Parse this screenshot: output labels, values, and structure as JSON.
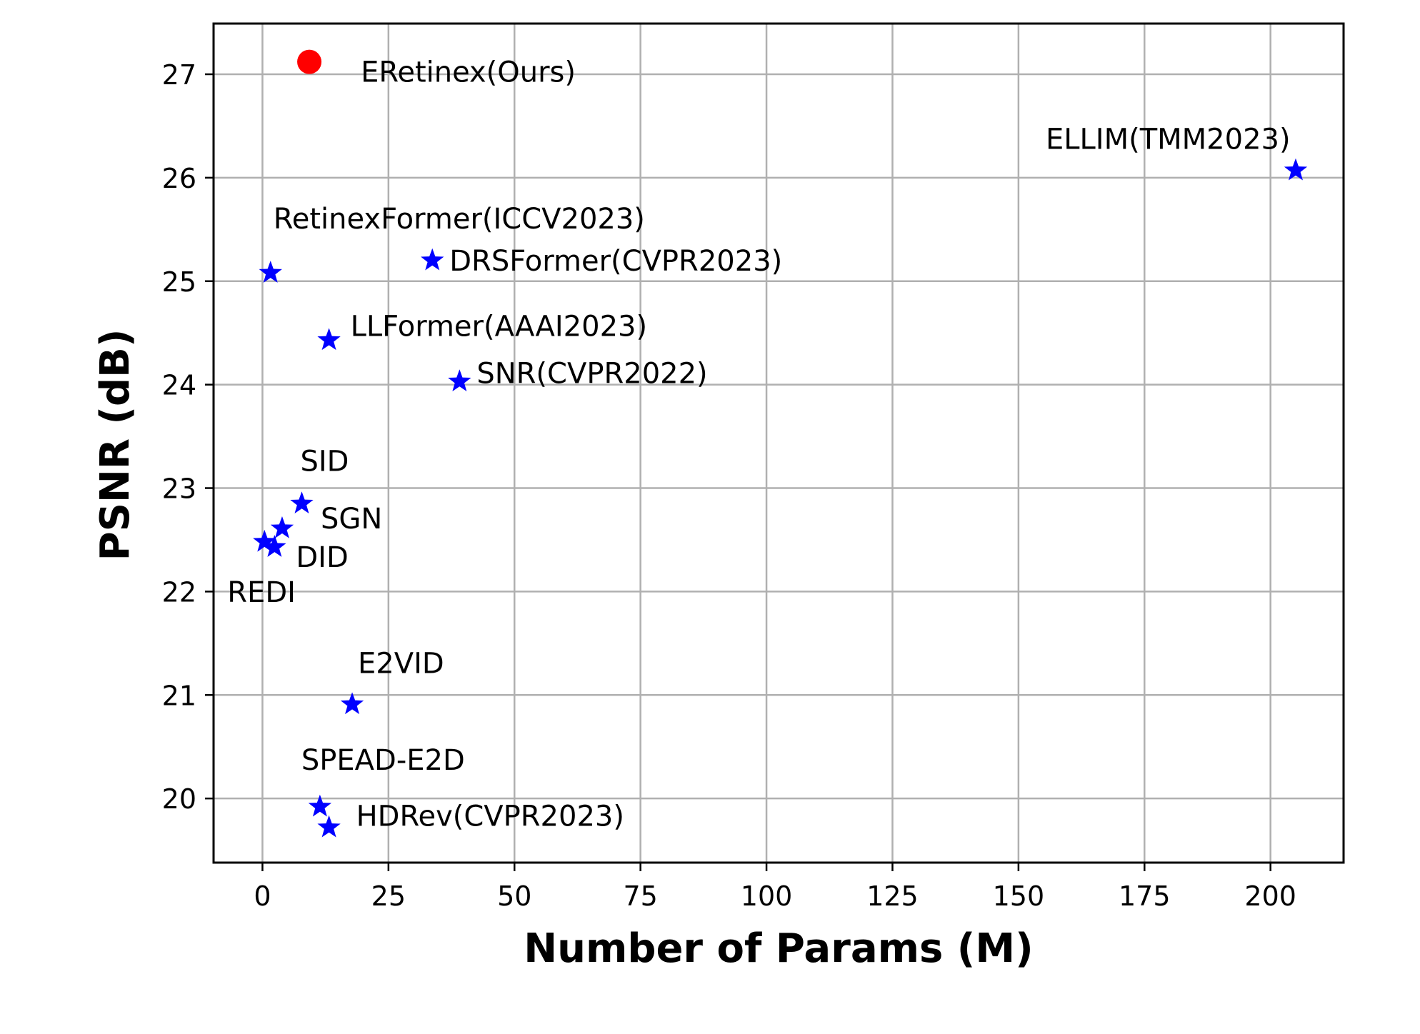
{
  "chart_data": {
    "type": "scatter",
    "xlabel": "Number of Params (M)",
    "ylabel": "PSNR (dB)",
    "xlim": [
      -9.7,
      214.5
    ],
    "ylim": [
      19.38,
      27.49
    ],
    "xticks": [
      0,
      25,
      50,
      75,
      100,
      125,
      150,
      175,
      200
    ],
    "yticks": [
      20,
      21,
      22,
      23,
      24,
      25,
      26,
      27
    ],
    "grid": true,
    "colors": {
      "ours": "#ff0000",
      "others": "#0000ff"
    },
    "points": [
      {
        "label": "ERetinex(Ours)",
        "x": 9.3,
        "y": 27.12,
        "marker": "circle",
        "color": "#ff0000"
      },
      {
        "label": "ELLIM(TMM2023)",
        "x": 205.0,
        "y": 26.07,
        "marker": "star",
        "color": "#0000ff"
      },
      {
        "label": "RetinexFormer(ICCV2023)",
        "x": 1.6,
        "y": 25.08,
        "marker": "star",
        "color": "#0000ff"
      },
      {
        "label": "DRSFormer(CVPR2023)",
        "x": 33.7,
        "y": 25.2,
        "marker": "star",
        "color": "#0000ff"
      },
      {
        "label": "LLFormer(AAAI2023)",
        "x": 13.2,
        "y": 24.43,
        "marker": "star",
        "color": "#0000ff"
      },
      {
        "label": "SNR(CVPR2022)",
        "x": 39.1,
        "y": 24.03,
        "marker": "star",
        "color": "#0000ff"
      },
      {
        "label": "SID",
        "x": 7.8,
        "y": 22.85,
        "marker": "star",
        "color": "#0000ff"
      },
      {
        "label": "SGN",
        "x": 3.9,
        "y": 22.61,
        "marker": "star",
        "color": "#0000ff"
      },
      {
        "label": "DID",
        "x": 2.4,
        "y": 22.43,
        "marker": "star",
        "color": "#0000ff"
      },
      {
        "label": "REDI",
        "x": 0.4,
        "y": 22.48,
        "marker": "star",
        "color": "#0000ff"
      },
      {
        "label": "E2VID",
        "x": 17.8,
        "y": 20.91,
        "marker": "star",
        "color": "#0000ff"
      },
      {
        "label": "SPEAD-E2D",
        "x": 11.4,
        "y": 19.92,
        "marker": "star",
        "color": "#0000ff"
      },
      {
        "label": "HDRev(CVPR2023)",
        "x": 13.2,
        "y": 19.72,
        "marker": "star",
        "color": "#0000ff"
      }
    ]
  }
}
